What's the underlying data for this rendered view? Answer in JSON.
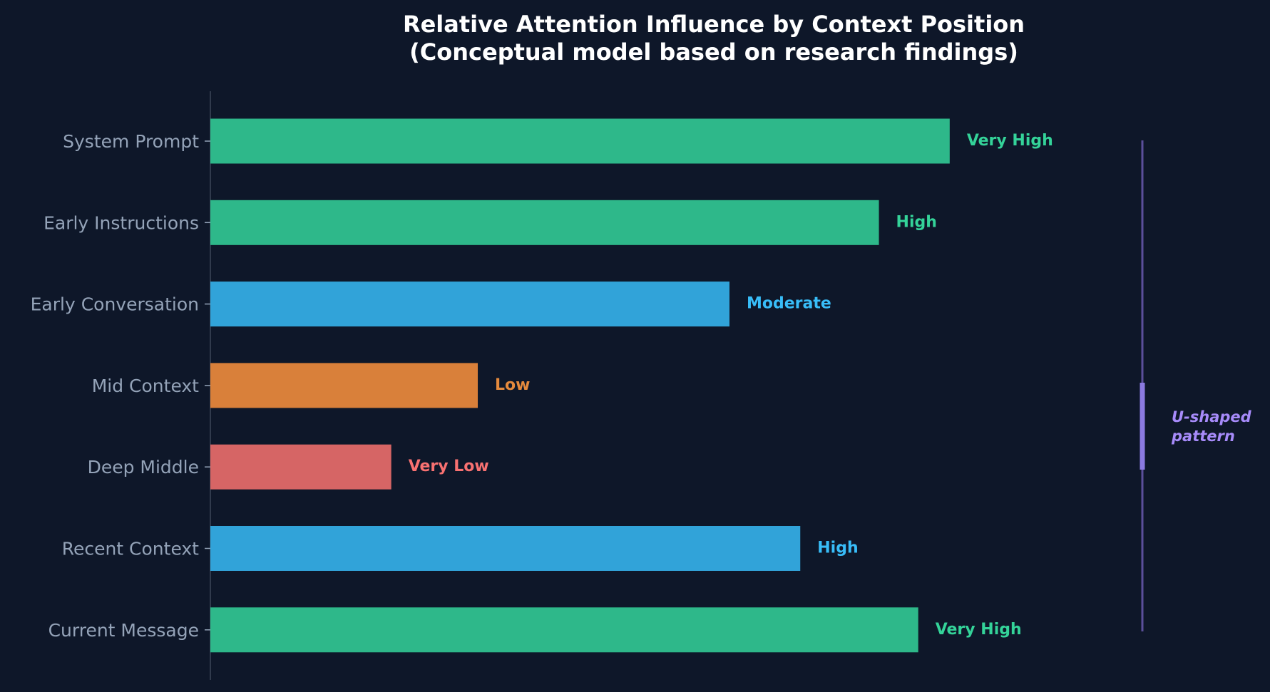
{
  "chart_data": {
    "type": "bar",
    "orientation": "horizontal",
    "title": "Relative Attention Influence by Context Position",
    "subtitle": "(Conceptual model based on research findings)",
    "categories": [
      "System Prompt",
      "Early Instructions",
      "Early Conversation",
      "Mid Context",
      "Deep Middle",
      "Recent Context",
      "Current Message"
    ],
    "values": [
      94,
      85,
      66,
      34,
      23,
      75,
      90
    ],
    "value_labels": [
      "Very High",
      "High",
      "Moderate",
      "Low",
      "Very Low",
      "High",
      "Very High"
    ],
    "bar_colors": [
      "#2eb88a",
      "#2eb88a",
      "#31a3d9",
      "#d9803a",
      "#d66565",
      "#31a3d9",
      "#2eb88a"
    ],
    "label_colors": [
      "#34d399",
      "#34d399",
      "#38bdf8",
      "#e58a3d",
      "#f87171",
      "#38bdf8",
      "#34d399"
    ],
    "xlim": [
      0,
      100
    ],
    "x_axis_visible": false,
    "grid": false,
    "annotation": {
      "text_lines": [
        "U-shaped",
        "pattern"
      ],
      "color": "#a78bfa",
      "line_color": "#5b4f9a",
      "highlight_color": "#8b7ae0"
    },
    "colors": {
      "background": "#0e1729",
      "tick_label": "#94a3b8",
      "axis": "#3b4658",
      "title": "#ffffff"
    }
  }
}
